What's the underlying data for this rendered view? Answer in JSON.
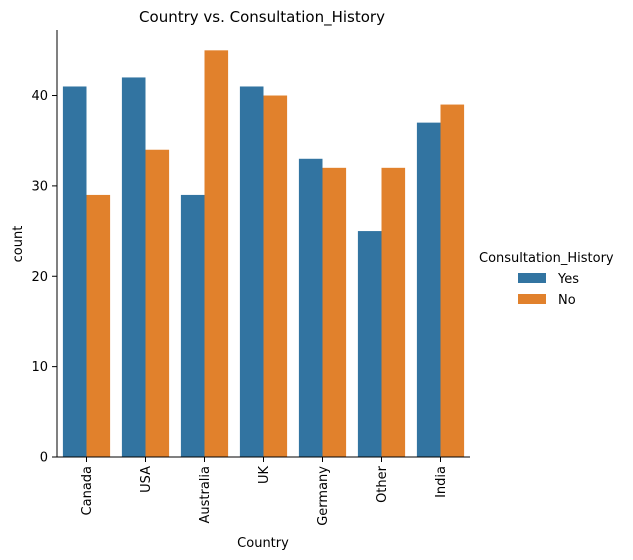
{
  "chart_data": {
    "type": "bar",
    "title": "Country vs. Consultation_History",
    "xlabel": "Country",
    "ylabel": "count",
    "categories": [
      "Canada",
      "USA",
      "Australia",
      "UK",
      "Germany",
      "Other",
      "India"
    ],
    "series": [
      {
        "name": "Yes",
        "color": "#3274a1",
        "values": [
          41,
          42,
          29,
          41,
          33,
          25,
          37
        ]
      },
      {
        "name": "No",
        "color": "#e1812c",
        "values": [
          29,
          34,
          45,
          40,
          32,
          32,
          39
        ]
      }
    ],
    "ylim": [
      0,
      47.25
    ],
    "yticks": [
      0,
      10,
      20,
      30,
      40
    ],
    "grid": false,
    "legend": {
      "title": "Consultation_History",
      "placement": "right"
    }
  }
}
